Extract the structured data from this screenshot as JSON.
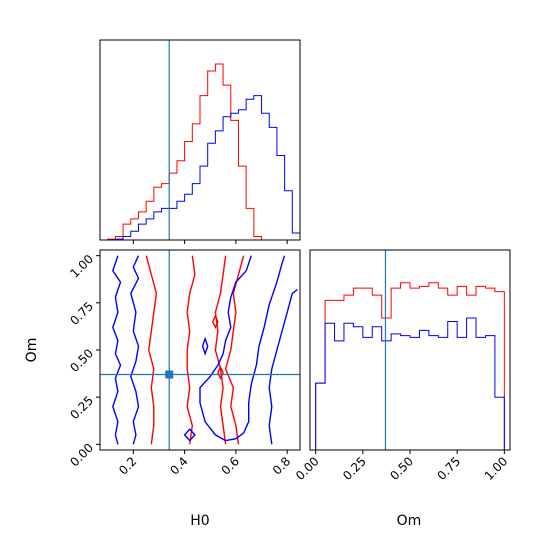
{
  "chart_data": {
    "type": "corner",
    "parameters": [
      "H0",
      "Om"
    ],
    "colors": {
      "red": "#ff0000",
      "blue": "#0000ff",
      "truth": "#1f77b4"
    },
    "truth": {
      "H0": 0.34,
      "Om": 0.37
    },
    "panels": {
      "h0_hist": {
        "type": "step-histogram",
        "xlim": [
          0.07,
          0.85
        ],
        "bin_edges": [
          0.07,
          0.1,
          0.13,
          0.16,
          0.19,
          0.22,
          0.25,
          0.28,
          0.31,
          0.34,
          0.37,
          0.4,
          0.43,
          0.46,
          0.49,
          0.52,
          0.55,
          0.58,
          0.61,
          0.64,
          0.67,
          0.7,
          0.73,
          0.76,
          0.79,
          0.82,
          0.85
        ],
        "series": [
          {
            "color": "red",
            "values": [
              0.0,
              0.005,
              0.02,
              0.09,
              0.12,
              0.16,
              0.22,
              0.3,
              0.32,
              0.38,
              0.45,
              0.56,
              0.66,
              0.82,
              0.96,
              1.0,
              0.88,
              0.68,
              0.42,
              0.18,
              0.02,
              0.0,
              0.0,
              0.0,
              0.0,
              0.0
            ]
          },
          {
            "color": "blue",
            "values": [
              0.0,
              0.0,
              0.005,
              0.02,
              0.05,
              0.09,
              0.12,
              0.16,
              0.18,
              0.18,
              0.22,
              0.26,
              0.32,
              0.42,
              0.55,
              0.62,
              0.7,
              0.72,
              0.74,
              0.8,
              0.82,
              0.72,
              0.64,
              0.48,
              0.28,
              0.04
            ]
          }
        ]
      },
      "om_hist": {
        "type": "step-histogram",
        "xlim": [
          -0.03,
          1.03
        ],
        "xticks": [
          "0.00",
          "0.25",
          "0.50",
          "0.75",
          "1.00"
        ],
        "xlabel": "Om",
        "bin_edges": [
          0.0,
          0.05,
          0.1,
          0.15,
          0.2,
          0.25,
          0.3,
          0.35,
          0.4,
          0.45,
          0.5,
          0.55,
          0.6,
          0.65,
          0.7,
          0.75,
          0.8,
          0.85,
          0.9,
          0.95,
          1.0
        ],
        "series": [
          {
            "color": "red",
            "values": [
              0.38,
              0.85,
              0.85,
              0.88,
              0.92,
              0.92,
              0.88,
              0.75,
              0.92,
              0.95,
              0.92,
              0.93,
              0.95,
              0.92,
              0.88,
              0.93,
              0.88,
              0.93,
              0.92,
              0.9
            ]
          },
          {
            "color": "blue",
            "values": [
              0.38,
              0.72,
              0.62,
              0.72,
              0.7,
              0.64,
              0.7,
              0.62,
              0.66,
              0.65,
              0.64,
              0.68,
              0.65,
              0.64,
              0.73,
              0.64,
              0.75,
              0.64,
              0.65,
              0.3
            ]
          }
        ]
      },
      "contour": {
        "type": "contour",
        "xlim": [
          0.07,
          0.85
        ],
        "ylim": [
          -0.03,
          1.03
        ],
        "xticks": [
          "0.2",
          "0.4",
          "0.6",
          "0.8"
        ],
        "yticks": [
          "0.00",
          "0.25",
          "0.50",
          "0.75",
          "1.00"
        ],
        "xlabel": "H0",
        "ylabel": "Om",
        "contours": [
          {
            "color": "red",
            "closed": false,
            "points": [
              [
                0.25,
                1.0
              ],
              [
                0.27,
                0.9
              ],
              [
                0.29,
                0.8
              ],
              [
                0.28,
                0.7
              ],
              [
                0.27,
                0.6
              ],
              [
                0.26,
                0.5
              ],
              [
                0.28,
                0.4
              ],
              [
                0.27,
                0.3
              ],
              [
                0.28,
                0.2
              ],
              [
                0.28,
                0.1
              ],
              [
                0.27,
                0.0
              ]
            ]
          },
          {
            "color": "red",
            "closed": false,
            "points": [
              [
                0.43,
                1.0
              ],
              [
                0.44,
                0.9
              ],
              [
                0.42,
                0.8
              ],
              [
                0.41,
                0.7
              ],
              [
                0.42,
                0.6
              ],
              [
                0.41,
                0.5
              ],
              [
                0.41,
                0.4
              ],
              [
                0.42,
                0.3
              ],
              [
                0.41,
                0.2
              ],
              [
                0.43,
                0.1
              ],
              [
                0.42,
                0.0
              ]
            ]
          },
          {
            "color": "red",
            "closed": false,
            "points": [
              [
                0.56,
                1.0
              ],
              [
                0.55,
                0.9
              ],
              [
                0.54,
                0.8
              ],
              [
                0.52,
                0.7
              ],
              [
                0.53,
                0.6
              ],
              [
                0.52,
                0.5
              ],
              [
                0.54,
                0.4
              ],
              [
                0.55,
                0.3
              ],
              [
                0.54,
                0.2
              ],
              [
                0.55,
                0.1
              ],
              [
                0.56,
                0.0
              ]
            ]
          },
          {
            "color": "red",
            "closed": false,
            "points": [
              [
                0.63,
                1.0
              ],
              [
                0.61,
                0.9
              ],
              [
                0.59,
                0.8
              ],
              [
                0.6,
                0.7
              ],
              [
                0.59,
                0.6
              ],
              [
                0.58,
                0.5
              ],
              [
                0.56,
                0.4
              ],
              [
                0.59,
                0.3
              ],
              [
                0.58,
                0.2
              ],
              [
                0.6,
                0.1
              ],
              [
                0.61,
                0.0
              ]
            ]
          },
          {
            "color": "red",
            "closed": true,
            "points": [
              [
                0.51,
                0.65
              ],
              [
                0.52,
                0.68
              ],
              [
                0.53,
                0.65
              ],
              [
                0.52,
                0.62
              ]
            ]
          },
          {
            "color": "red",
            "closed": true,
            "points": [
              [
                0.53,
                0.38
              ],
              [
                0.54,
                0.41
              ],
              [
                0.55,
                0.38
              ],
              [
                0.54,
                0.35
              ]
            ]
          },
          {
            "color": "blue",
            "closed": false,
            "points": [
              [
                0.14,
                1.0
              ],
              [
                0.12,
                0.92
              ],
              [
                0.15,
                0.86
              ],
              [
                0.13,
                0.78
              ],
              [
                0.14,
                0.7
              ],
              [
                0.12,
                0.62
              ],
              [
                0.14,
                0.55
              ],
              [
                0.13,
                0.48
              ],
              [
                0.15,
                0.42
              ],
              [
                0.13,
                0.35
              ],
              [
                0.14,
                0.28
              ],
              [
                0.12,
                0.2
              ],
              [
                0.14,
                0.12
              ],
              [
                0.13,
                0.05
              ],
              [
                0.14,
                0.0
              ]
            ]
          },
          {
            "color": "blue",
            "closed": false,
            "points": [
              [
                0.22,
                1.0
              ],
              [
                0.2,
                0.94
              ],
              [
                0.22,
                0.88
              ],
              [
                0.19,
                0.8
              ],
              [
                0.21,
                0.7
              ],
              [
                0.2,
                0.6
              ],
              [
                0.22,
                0.52
              ],
              [
                0.21,
                0.44
              ],
              [
                0.19,
                0.36
              ],
              [
                0.21,
                0.28
              ],
              [
                0.22,
                0.2
              ],
              [
                0.2,
                0.12
              ],
              [
                0.21,
                0.05
              ],
              [
                0.2,
                0.0
              ]
            ]
          },
          {
            "color": "blue",
            "closed": false,
            "points": [
              [
                0.66,
                1.0
              ],
              [
                0.64,
                0.92
              ],
              [
                0.6,
                0.86
              ],
              [
                0.58,
                0.78
              ],
              [
                0.57,
                0.7
              ],
              [
                0.58,
                0.62
              ],
              [
                0.56,
                0.55
              ],
              [
                0.55,
                0.48
              ],
              [
                0.53,
                0.42
              ],
              [
                0.5,
                0.36
              ],
              [
                0.46,
                0.3
              ],
              [
                0.46,
                0.22
              ],
              [
                0.48,
                0.12
              ],
              [
                0.52,
                0.05
              ],
              [
                0.56,
                0.02
              ],
              [
                0.6,
                0.03
              ],
              [
                0.63,
                0.06
              ],
              [
                0.65,
                0.12
              ],
              [
                0.65,
                0.22
              ],
              [
                0.66,
                0.32
              ],
              [
                0.68,
                0.42
              ],
              [
                0.69,
                0.52
              ],
              [
                0.71,
                0.62
              ],
              [
                0.73,
                0.74
              ],
              [
                0.76,
                0.86
              ],
              [
                0.78,
                0.96
              ],
              [
                0.79,
                1.0
              ]
            ]
          },
          {
            "color": "blue",
            "closed": false,
            "points": [
              [
                0.74,
                0.0
              ],
              [
                0.73,
                0.1
              ],
              [
                0.74,
                0.2
              ],
              [
                0.73,
                0.3
              ],
              [
                0.74,
                0.4
              ],
              [
                0.76,
                0.5
              ],
              [
                0.78,
                0.6
              ],
              [
                0.8,
                0.7
              ],
              [
                0.82,
                0.8
              ],
              [
                0.84,
                0.82
              ]
            ]
          },
          {
            "color": "blue",
            "closed": true,
            "points": [
              [
                0.47,
                0.52
              ],
              [
                0.48,
                0.56
              ],
              [
                0.49,
                0.52
              ],
              [
                0.48,
                0.48
              ]
            ]
          },
          {
            "color": "blue",
            "closed": true,
            "points": [
              [
                0.4,
                0.05
              ],
              [
                0.42,
                0.08
              ],
              [
                0.44,
                0.05
              ],
              [
                0.42,
                0.02
              ]
            ]
          }
        ]
      }
    }
  }
}
